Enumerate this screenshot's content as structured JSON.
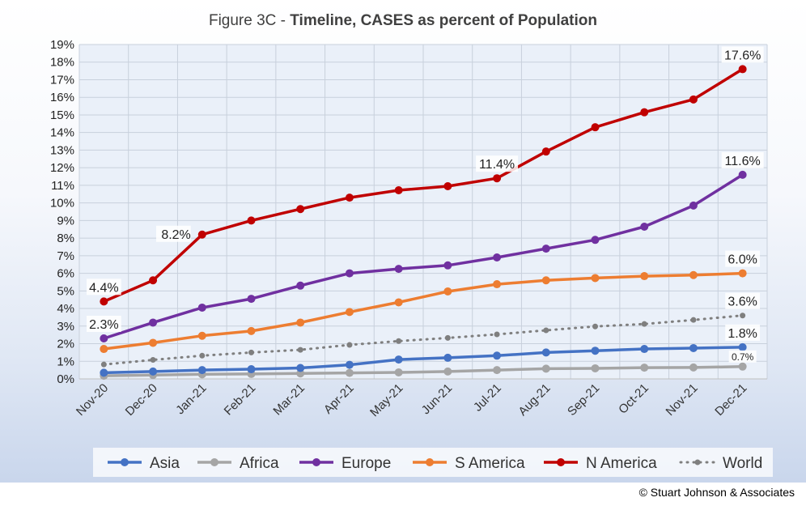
{
  "copyright": "© Stuart Johnson & Associates",
  "chart_data": {
    "type": "line",
    "title_prefix": "Figure 3C - ",
    "title_bold": "Timeline, CASES as percent of Population",
    "xlabel": "",
    "ylabel": "",
    "ylim": [
      0,
      19
    ],
    "y_ticks": [
      "0%",
      "1%",
      "2%",
      "3%",
      "4%",
      "5%",
      "6%",
      "7%",
      "8%",
      "9%",
      "10%",
      "11%",
      "12%",
      "13%",
      "14%",
      "15%",
      "16%",
      "17%",
      "18%",
      "19%"
    ],
    "categories": [
      "Nov-20",
      "Dec-20",
      "Jan-21",
      "Feb-21",
      "Mar-21",
      "Apr-21",
      "May-21",
      "Jun-21",
      "Jul-21",
      "Aug-21",
      "Sep-21",
      "Oct-21",
      "Nov-21",
      "Dec-21"
    ],
    "grid": true,
    "legend_position": "bottom",
    "series": [
      {
        "name": "Asia",
        "color": "#4472C4",
        "dashed": false,
        "values": [
          0.35,
          0.42,
          0.5,
          0.55,
          0.62,
          0.8,
          1.1,
          1.2,
          1.32,
          1.5,
          1.6,
          1.7,
          1.75,
          1.8
        ]
      },
      {
        "name": "Africa",
        "color": "#A5A5A5",
        "dashed": false,
        "values": [
          0.18,
          0.22,
          0.26,
          0.28,
          0.31,
          0.34,
          0.37,
          0.42,
          0.5,
          0.58,
          0.6,
          0.64,
          0.65,
          0.7
        ]
      },
      {
        "name": "Europe",
        "color": "#7030A0",
        "dashed": false,
        "values": [
          2.3,
          3.2,
          4.05,
          4.55,
          5.3,
          6.0,
          6.25,
          6.45,
          6.9,
          7.4,
          7.9,
          8.65,
          9.85,
          11.6
        ]
      },
      {
        "name": "S America",
        "color": "#ED7D31",
        "dashed": false,
        "values": [
          1.7,
          2.05,
          2.45,
          2.72,
          3.2,
          3.8,
          4.35,
          4.97,
          5.38,
          5.6,
          5.73,
          5.84,
          5.9,
          6.0
        ]
      },
      {
        "name": "N America",
        "color": "#C00000",
        "dashed": false,
        "values": [
          4.4,
          5.6,
          8.2,
          9.0,
          9.65,
          10.3,
          10.72,
          10.95,
          11.4,
          12.92,
          14.3,
          15.15,
          15.88,
          17.6
        ]
      },
      {
        "name": "World",
        "color": "#7F7F7F",
        "dashed": true,
        "values": [
          0.82,
          1.08,
          1.32,
          1.5,
          1.65,
          1.93,
          2.15,
          2.33,
          2.53,
          2.76,
          2.98,
          3.12,
          3.35,
          3.6
        ]
      }
    ],
    "annotations": [
      {
        "text": "4.4%",
        "series": "N America",
        "index": 0,
        "pos": "above"
      },
      {
        "text": "8.2%",
        "series": "N America",
        "index": 2,
        "pos": "left"
      },
      {
        "text": "11.4%",
        "series": "N America",
        "index": 8,
        "pos": "above"
      },
      {
        "text": "17.6%",
        "series": "N America",
        "index": 13,
        "pos": "above"
      },
      {
        "text": "2.3%",
        "series": "Europe",
        "index": 0,
        "pos": "above"
      },
      {
        "text": "11.6%",
        "series": "Europe",
        "index": 13,
        "pos": "above"
      },
      {
        "text": "6.0%",
        "series": "S America",
        "index": 13,
        "pos": "above"
      },
      {
        "text": "3.6%",
        "series": "World",
        "index": 13,
        "pos": "above"
      },
      {
        "text": "1.8%",
        "series": "Asia",
        "index": 13,
        "pos": "above"
      },
      {
        "text": "0.7%",
        "series": "Africa",
        "index": 13,
        "pos": "above-small"
      }
    ]
  }
}
